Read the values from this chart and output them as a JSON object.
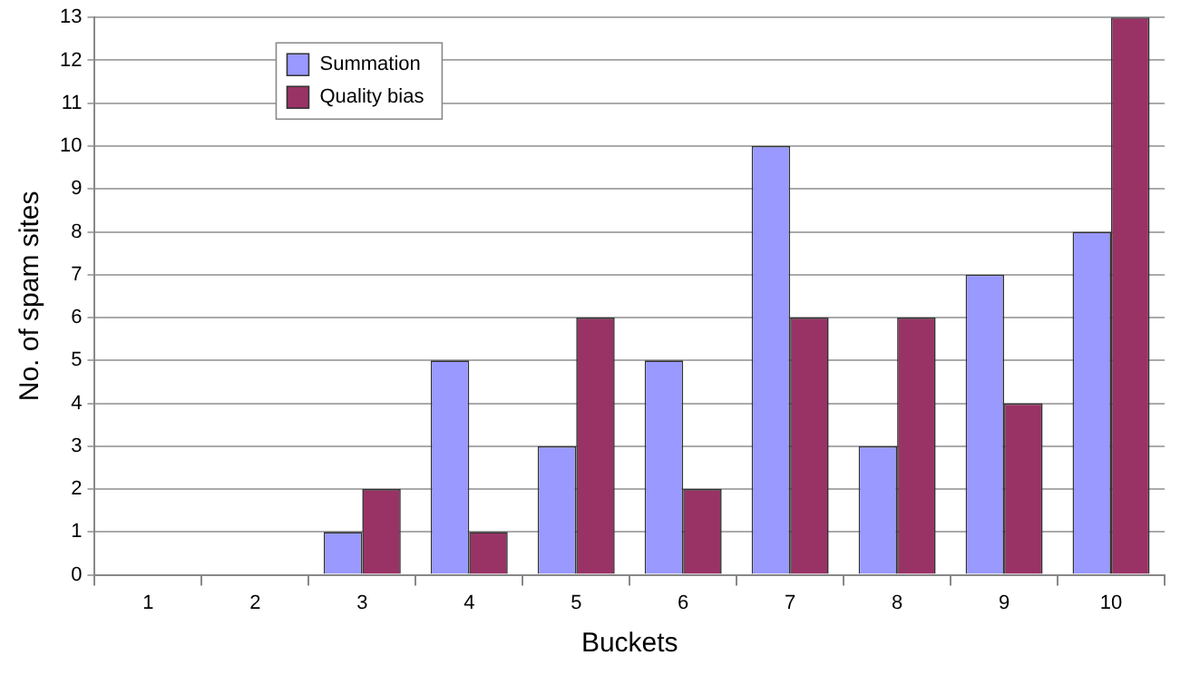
{
  "chart_data": {
    "type": "bar",
    "xlabel": "Buckets",
    "ylabel": "No. of spam sites",
    "categories": [
      "1",
      "2",
      "3",
      "4",
      "5",
      "6",
      "7",
      "8",
      "9",
      "10"
    ],
    "series": [
      {
        "name": "Summation",
        "color": "#9999ff",
        "values": [
          0,
          0,
          1,
          5,
          3,
          5,
          10,
          3,
          7,
          8
        ]
      },
      {
        "name": "Quality bias",
        "color": "#993366",
        "values": [
          0,
          0,
          2,
          1,
          6,
          2,
          6,
          6,
          4,
          13
        ]
      }
    ],
    "ylim": [
      0,
      13
    ],
    "yticks": [
      0,
      1,
      2,
      3,
      4,
      5,
      6,
      7,
      8,
      9,
      10,
      11,
      12,
      13
    ],
    "grid": "y",
    "legend": "top left"
  }
}
